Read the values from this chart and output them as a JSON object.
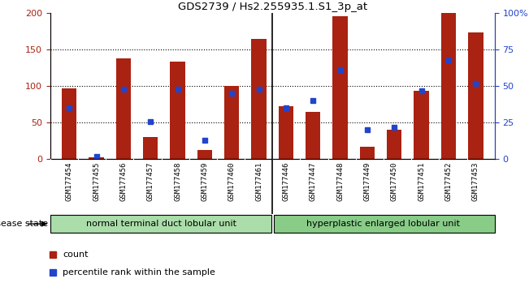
{
  "title": "GDS2739 / Hs2.255935.1.S1_3p_at",
  "samples": [
    "GSM177454",
    "GSM177455",
    "GSM177456",
    "GSM177457",
    "GSM177458",
    "GSM177459",
    "GSM177460",
    "GSM177461",
    "GSM177446",
    "GSM177447",
    "GSM177448",
    "GSM177449",
    "GSM177450",
    "GSM177451",
    "GSM177452",
    "GSM177453"
  ],
  "counts": [
    97,
    3,
    138,
    30,
    133,
    13,
    100,
    165,
    72,
    65,
    195,
    17,
    40,
    94,
    200,
    173
  ],
  "percentiles": [
    35,
    2,
    48,
    26,
    48,
    13,
    45,
    48,
    35,
    40,
    61,
    20,
    22,
    47,
    68,
    52
  ],
  "group1_label": "normal terminal duct lobular unit",
  "group2_label": "hyperplastic enlarged lobular unit",
  "group1_count": 8,
  "group2_count": 8,
  "ylim_left": [
    0,
    200
  ],
  "ylim_right": [
    0,
    100
  ],
  "yticks_left": [
    0,
    50,
    100,
    150,
    200
  ],
  "yticks_right": [
    0,
    25,
    50,
    75,
    100
  ],
  "yticklabels_right": [
    "0",
    "25",
    "50",
    "75",
    "100%"
  ],
  "bar_color": "#aa2211",
  "dot_color": "#2244cc",
  "bg_color": "#ffffff",
  "label_bg": "#bbbbbb",
  "group1_bg": "#aaddaa",
  "group2_bg": "#88cc88",
  "legend_count_label": "count",
  "legend_pct_label": "percentile rank within the sample",
  "disease_state_label": "disease state",
  "bar_width": 0.55
}
